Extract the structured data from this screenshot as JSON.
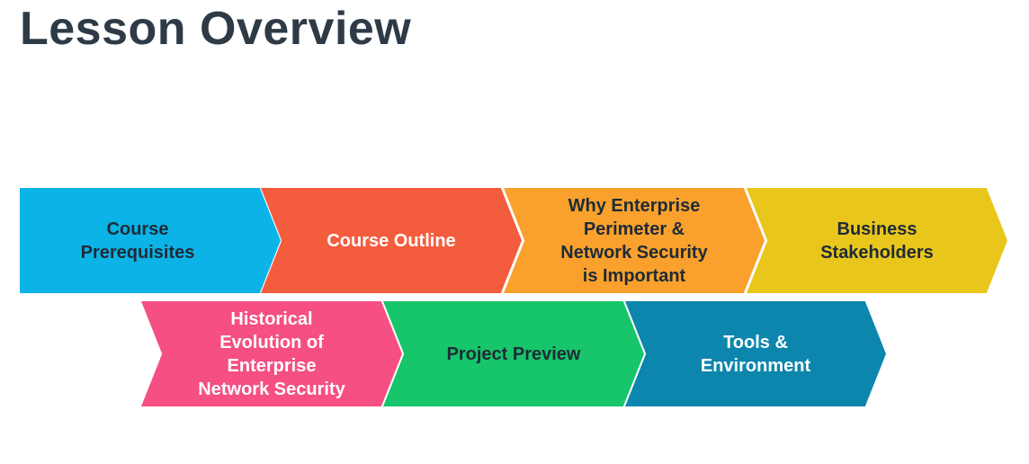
{
  "header": {
    "title": "Lesson Overview"
  },
  "steps": [
    {
      "label": "Course\nPrerequisites",
      "color": "#0bb3e6",
      "text_color": "#1e2b36"
    },
    {
      "label": "Course Outline",
      "color": "#f45c3e",
      "text_color": "#ffffff"
    },
    {
      "label": "Why Enterprise\nPerimeter &\nNetwork Security\nis Important",
      "color": "#f9a12c",
      "text_color": "#1e2b36"
    },
    {
      "label": "Business\nStakeholders",
      "color": "#e9c61b",
      "text_color": "#1e2b36"
    },
    {
      "label": "Historical\nEvolution of\nEnterprise\nNetwork Security",
      "color": "#f54f83",
      "text_color": "#ffffff"
    },
    {
      "label": "Project Preview",
      "color": "#17c56a",
      "text_color": "#1e2b36"
    },
    {
      "label": "Tools &\nEnvironment",
      "color": "#0c86ad",
      "text_color": "#ffffff"
    }
  ]
}
